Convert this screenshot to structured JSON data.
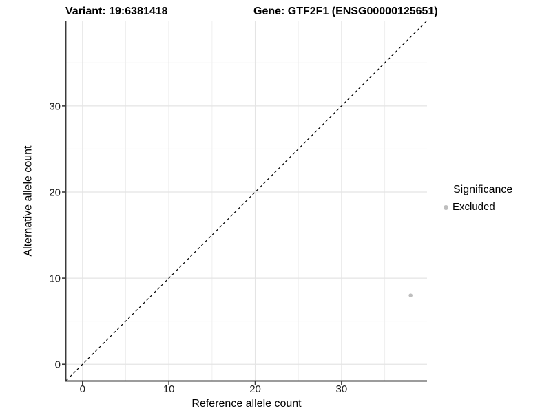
{
  "chart_data": {
    "type": "scatter",
    "title": {
      "variant": "Variant: 19:6381418",
      "gene": "Gene: GTF2F1 (ENSG00000125651)"
    },
    "xlabel": "Reference allele count",
    "ylabel": "Alternative allele count",
    "x_ticks": [
      0,
      10,
      20,
      30
    ],
    "y_ticks": [
      0,
      10,
      20,
      30
    ],
    "xlim": [
      -1.9,
      39.9
    ],
    "ylim": [
      -1.9,
      39.9
    ],
    "grid": {
      "major": [
        0,
        10,
        20,
        30
      ],
      "minor": [
        5,
        15,
        25,
        35
      ],
      "major_color": "#e4e4e4",
      "minor_color": "#efefef"
    },
    "identity_line": {
      "style": "dashed",
      "color": "#000000",
      "from": [
        -1.9,
        -1.9
      ],
      "to": [
        39.9,
        39.9
      ]
    },
    "points": [
      {
        "x": 38,
        "y": 8,
        "significance": "Excluded",
        "color": "#bebebe"
      }
    ],
    "legend": {
      "title": "Significance",
      "entries": [
        {
          "label": "Excluded",
          "color": "#bebebe",
          "marker": "circle"
        }
      ]
    },
    "colors": {
      "axis_line": "#3a3a3a",
      "tick_mark": "#3a3a3a",
      "tick_label": "#1a1a1a",
      "title_text": "#000000"
    }
  }
}
